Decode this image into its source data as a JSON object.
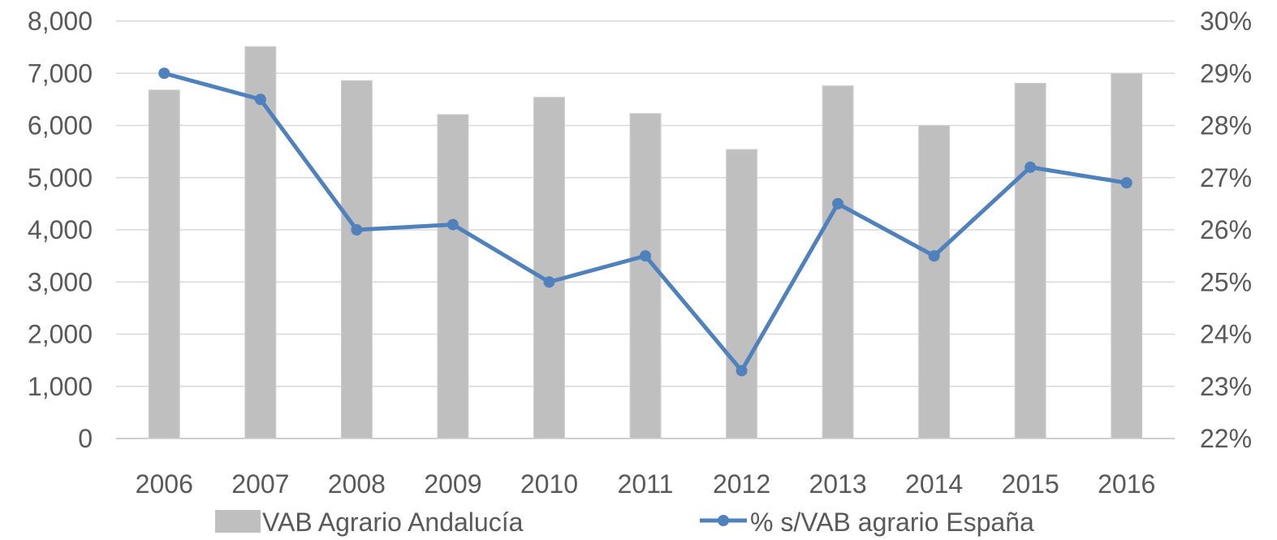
{
  "chart_data": {
    "type": "bar",
    "categories": [
      "2006",
      "2007",
      "2008",
      "2009",
      "2010",
      "2011",
      "2012",
      "2013",
      "2014",
      "2015",
      "2016"
    ],
    "series": [
      {
        "name": "VAB Agrario Andalucía",
        "type": "bar",
        "axis": "left",
        "color": "#bfbfbf",
        "values": [
          6680,
          7510,
          6860,
          6210,
          6540,
          6230,
          5540,
          6760,
          6000,
          6810,
          7000
        ]
      },
      {
        "name": "% s/VAB agrario España",
        "type": "line",
        "axis": "right",
        "color": "#4f81bd",
        "values": [
          29.0,
          28.5,
          26.0,
          26.1,
          25.0,
          25.5,
          23.3,
          26.5,
          25.5,
          27.2,
          26.9
        ]
      }
    ],
    "y_left": {
      "ylim": [
        0,
        8000
      ],
      "ticks": [
        0,
        1000,
        2000,
        3000,
        4000,
        5000,
        6000,
        7000,
        8000
      ],
      "tick_labels": [
        "0",
        "1,000",
        "2,000",
        "3,000",
        "4,000",
        "5,000",
        "6,000",
        "7,000",
        "8,000"
      ]
    },
    "y_right": {
      "ylim": [
        22,
        30
      ],
      "ticks": [
        22,
        23,
        24,
        25,
        26,
        27,
        28,
        29,
        30
      ],
      "tick_labels": [
        "22%",
        "23%",
        "24%",
        "25%",
        "26%",
        "27%",
        "28%",
        "29%",
        "30%"
      ]
    },
    "title": "",
    "xlabel": "",
    "ylabel": "",
    "grid": true,
    "legend_position": "bottom",
    "colors": {
      "grid": "#d9d9d9",
      "text": "#595959"
    }
  }
}
